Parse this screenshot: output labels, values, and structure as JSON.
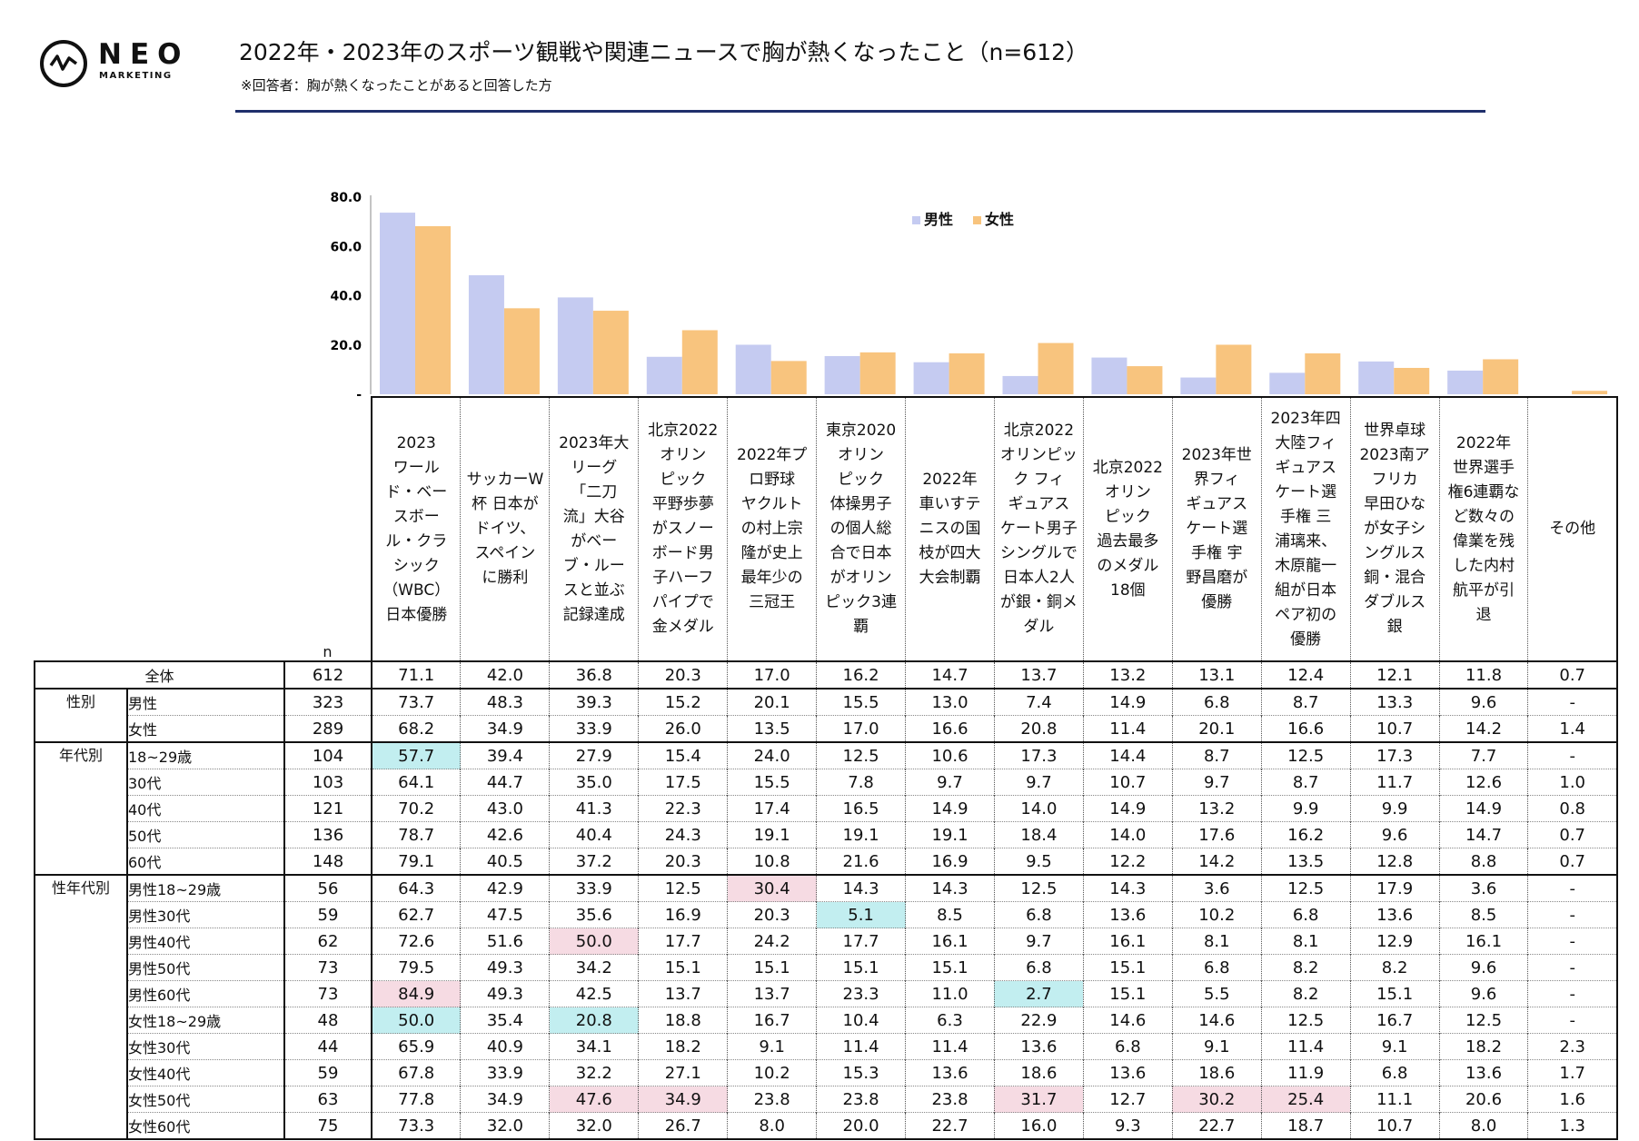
{
  "logo": {
    "word": "NEO",
    "sub": "MARKETING"
  },
  "title": "2022年・2023年のスポーツ観戦や関連ニュースで胸が熱くなったこと（n=612）",
  "subtitle": "※回答者：胸が熱くなったことがあると回答した方",
  "colors": {
    "male": "#c5cbf1",
    "female": "#f8c47e",
    "high": "#f6dbe3",
    "low": "#c2eef0",
    "rule": "#1f2f6b"
  },
  "chart_data": {
    "type": "bar",
    "title": "",
    "ylim": [
      0,
      80
    ],
    "yticks": [
      {
        "value": 0,
        "label": "-"
      },
      {
        "value": 20,
        "label": "20.0"
      },
      {
        "value": 40,
        "label": "40.0"
      },
      {
        "value": 60,
        "label": "60.0"
      },
      {
        "value": 80,
        "label": "80.0"
      }
    ],
    "legend_position": "top-right",
    "categories": [
      "2023 ワールド・ベースボール・クラシック（WBC）日本優勝",
      "サッカーW杯 日本がドイツ、スペインに勝利",
      "2023年大リーグ「二刀流」大谷がベーブ・ルースと並ぶ記録達成",
      "北京2022オリンピック 平野歩夢がスノーボード男子ハーフパイプで金メダル",
      "2022年プロ野球ヤクルトの村上宗隆が史上最年少の三冠王",
      "東京2020オリンピック 体操男子の個人総合で日本がオリンピック3連覇",
      "2022年車いすテニスの国枝が四大大会制覇",
      "北京2022オリンピック フィギュアスケート男子シングルで日本人2人が銀・銅メダル",
      "北京2022オリンピック 過去最多のメダル18個",
      "2023年世界フィギュアスケート選手権 宇野昌磨が優勝",
      "2023年四大陸フィギュアスケート選手権 三浦璃来、木原龍一組が日本ペア初の優勝",
      "世界卓球2023南アフリカ 早田ひなが女子シングルス銅・混合ダブルス銀",
      "2022年世界選手権6連覇など数々の偉業を残した内村航平が引退",
      "その他"
    ],
    "series": [
      {
        "name": "男性",
        "values": [
          73.7,
          48.3,
          39.3,
          15.2,
          20.1,
          15.5,
          13.0,
          7.4,
          14.9,
          6.8,
          8.7,
          13.3,
          9.6,
          0
        ]
      },
      {
        "name": "女性",
        "values": [
          68.2,
          34.9,
          33.9,
          26.0,
          13.5,
          17.0,
          16.6,
          20.8,
          11.4,
          20.1,
          16.6,
          10.7,
          14.2,
          1.4
        ]
      }
    ]
  },
  "table": {
    "n_header": "n",
    "columns": [
      "2023\nワール\nド・ベー\nスボー\nル・クラ\nシック\n（WBC）\n日本優勝",
      "サッカーW\n杯 日本が\nドイツ、\nスペイン\nに勝利",
      "2023年大\nリーグ\n「二刀\n流」大谷\nがベー\nブ・ルー\nスと並ぶ\n記録達成",
      "北京2022\nオリン\nピック\n平野歩夢\nがスノー\nボード男\n子ハーフ\nパイプで\n金メダル",
      "2022年プ\nロ野球\nヤクルト\nの村上宗\n隆が史上\n最年少の\n三冠王",
      "東京2020\nオリン\nピック\n体操男子\nの個人総\n合で日本\nがオリン\nピック3連\n覇",
      "2022年\n車いすテ\nニスの国\n枝が四大\n大会制覇",
      "北京2022\nオリンピッ\nク フィ\nギュアス\nケート男子\nシングルで\n日本人2人\nが銀・銅メ\nダル",
      "北京2022\nオリン\nピック\n過去最多\nのメダル\n18個",
      "2023年世\n界フィ\nギュアス\nケート選\n手権 宇\n野昌磨が\n優勝",
      "2023年四\n大陸フィ\nギュアス\nケート選\n手権 三\n浦璃来、\n木原龍一\n組が日本\nペア初の\n優勝",
      "世界卓球\n2023南ア\nフリカ\n早田ひな\nが女子シ\nングルス\n銅・混合\nダブルス\n銀",
      "2022年\n世界選手\n権6連覇な\nど数々の\n偉業を残\nした内村\n航平が引\n退",
      "その他"
    ],
    "groups": [
      {
        "label": "全体",
        "rows": [
          {
            "label": "全体",
            "n": "612",
            "values": [
              "71.1",
              "42.0",
              "36.8",
              "20.3",
              "17.0",
              "16.2",
              "14.7",
              "13.7",
              "13.2",
              "13.1",
              "12.4",
              "12.1",
              "11.8",
              "0.7"
            ],
            "highlights": {}
          }
        ]
      },
      {
        "label": "性別",
        "rows": [
          {
            "label": "男性",
            "n": "323",
            "values": [
              "73.7",
              "48.3",
              "39.3",
              "15.2",
              "20.1",
              "15.5",
              "13.0",
              "7.4",
              "14.9",
              "6.8",
              "8.7",
              "13.3",
              "9.6",
              "-"
            ],
            "highlights": {}
          },
          {
            "label": "女性",
            "n": "289",
            "values": [
              "68.2",
              "34.9",
              "33.9",
              "26.0",
              "13.5",
              "17.0",
              "16.6",
              "20.8",
              "11.4",
              "20.1",
              "16.6",
              "10.7",
              "14.2",
              "1.4"
            ],
            "highlights": {}
          }
        ]
      },
      {
        "label": "年代別",
        "rows": [
          {
            "label": "18~29歳",
            "n": "104",
            "values": [
              "57.7",
              "39.4",
              "27.9",
              "15.4",
              "24.0",
              "12.5",
              "10.6",
              "17.3",
              "14.4",
              "8.7",
              "12.5",
              "17.3",
              "7.7",
              "-"
            ],
            "highlights": {
              "0": "low"
            }
          },
          {
            "label": "30代",
            "n": "103",
            "values": [
              "64.1",
              "44.7",
              "35.0",
              "17.5",
              "15.5",
              "7.8",
              "9.7",
              "9.7",
              "10.7",
              "9.7",
              "8.7",
              "11.7",
              "12.6",
              "1.0"
            ],
            "highlights": {}
          },
          {
            "label": "40代",
            "n": "121",
            "values": [
              "70.2",
              "43.0",
              "41.3",
              "22.3",
              "17.4",
              "16.5",
              "14.9",
              "14.0",
              "14.9",
              "13.2",
              "9.9",
              "9.9",
              "14.9",
              "0.8"
            ],
            "highlights": {}
          },
          {
            "label": "50代",
            "n": "136",
            "values": [
              "78.7",
              "42.6",
              "40.4",
              "24.3",
              "19.1",
              "19.1",
              "19.1",
              "18.4",
              "14.0",
              "17.6",
              "16.2",
              "9.6",
              "14.7",
              "0.7"
            ],
            "highlights": {}
          },
          {
            "label": "60代",
            "n": "148",
            "values": [
              "79.1",
              "40.5",
              "37.2",
              "20.3",
              "10.8",
              "21.6",
              "16.9",
              "9.5",
              "12.2",
              "14.2",
              "13.5",
              "12.8",
              "8.8",
              "0.7"
            ],
            "highlights": {}
          }
        ]
      },
      {
        "label": "性年代別",
        "rows": [
          {
            "label": "男性18~29歳",
            "n": "56",
            "values": [
              "64.3",
              "42.9",
              "33.9",
              "12.5",
              "30.4",
              "14.3",
              "14.3",
              "12.5",
              "14.3",
              "3.6",
              "12.5",
              "17.9",
              "3.6",
              "-"
            ],
            "highlights": {
              "4": "high"
            }
          },
          {
            "label": "男性30代",
            "n": "59",
            "values": [
              "62.7",
              "47.5",
              "35.6",
              "16.9",
              "20.3",
              "5.1",
              "8.5",
              "6.8",
              "13.6",
              "10.2",
              "6.8",
              "13.6",
              "8.5",
              "-"
            ],
            "highlights": {
              "5": "low"
            }
          },
          {
            "label": "男性40代",
            "n": "62",
            "values": [
              "72.6",
              "51.6",
              "50.0",
              "17.7",
              "24.2",
              "17.7",
              "16.1",
              "9.7",
              "16.1",
              "8.1",
              "8.1",
              "12.9",
              "16.1",
              "-"
            ],
            "highlights": {
              "2": "high"
            }
          },
          {
            "label": "男性50代",
            "n": "73",
            "values": [
              "79.5",
              "49.3",
              "34.2",
              "15.1",
              "15.1",
              "15.1",
              "15.1",
              "6.8",
              "15.1",
              "6.8",
              "8.2",
              "8.2",
              "9.6",
              "-"
            ],
            "highlights": {}
          },
          {
            "label": "男性60代",
            "n": "73",
            "values": [
              "84.9",
              "49.3",
              "42.5",
              "13.7",
              "13.7",
              "23.3",
              "11.0",
              "2.7",
              "15.1",
              "5.5",
              "8.2",
              "15.1",
              "9.6",
              "-"
            ],
            "highlights": {
              "0": "high",
              "7": "low"
            }
          },
          {
            "label": "女性18~29歳",
            "n": "48",
            "values": [
              "50.0",
              "35.4",
              "20.8",
              "18.8",
              "16.7",
              "10.4",
              "6.3",
              "22.9",
              "14.6",
              "14.6",
              "12.5",
              "16.7",
              "12.5",
              "-"
            ],
            "highlights": {
              "0": "low",
              "2": "low"
            }
          },
          {
            "label": "女性30代",
            "n": "44",
            "values": [
              "65.9",
              "40.9",
              "34.1",
              "18.2",
              "9.1",
              "11.4",
              "11.4",
              "13.6",
              "6.8",
              "9.1",
              "11.4",
              "9.1",
              "18.2",
              "2.3"
            ],
            "highlights": {}
          },
          {
            "label": "女性40代",
            "n": "59",
            "values": [
              "67.8",
              "33.9",
              "32.2",
              "27.1",
              "10.2",
              "15.3",
              "13.6",
              "18.6",
              "13.6",
              "18.6",
              "11.9",
              "6.8",
              "13.6",
              "1.7"
            ],
            "highlights": {}
          },
          {
            "label": "女性50代",
            "n": "63",
            "values": [
              "77.8",
              "34.9",
              "47.6",
              "34.9",
              "23.8",
              "23.8",
              "23.8",
              "31.7",
              "12.7",
              "30.2",
              "25.4",
              "11.1",
              "20.6",
              "1.6"
            ],
            "highlights": {
              "2": "high",
              "3": "high",
              "7": "high",
              "9": "high",
              "10": "high"
            }
          },
          {
            "label": "女性60代",
            "n": "75",
            "values": [
              "73.3",
              "32.0",
              "32.0",
              "26.7",
              "8.0",
              "20.0",
              "22.7",
              "16.0",
              "9.3",
              "22.7",
              "18.7",
              "10.7",
              "8.0",
              "1.3"
            ],
            "highlights": {}
          }
        ]
      }
    ]
  }
}
